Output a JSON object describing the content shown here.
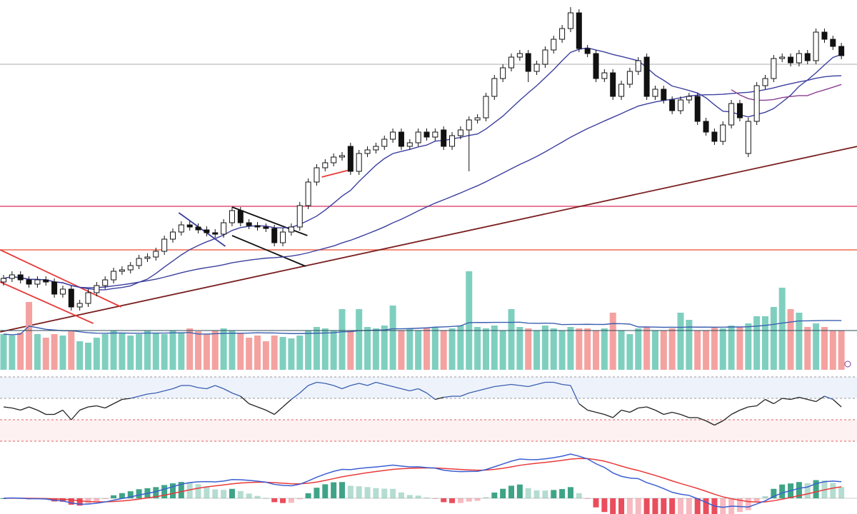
{
  "chart_data": [
    {
      "type": "candlestick",
      "panel": "price",
      "title": "",
      "xlabel": "",
      "ylabel": "",
      "grid": false,
      "open_default": "previous close",
      "close": [
        70,
        75,
        68,
        62,
        68,
        65,
        48,
        55,
        30,
        35,
        50,
        60,
        68,
        80,
        82,
        88,
        98,
        100,
        108,
        125,
        135,
        145,
        142,
        138,
        134,
        132,
        148,
        165,
        148,
        144,
        142,
        140,
        120,
        135,
        142,
        172,
        205,
        225,
        232,
        240,
        242,
        220,
        245,
        250,
        255,
        265,
        275,
        255,
        260,
        275,
        268,
        275,
        255,
        270,
        278,
        292,
        295,
        325,
        350,
        365,
        380,
        385,
        360,
        370,
        390,
        405,
        420,
        442,
        392,
        385,
        350,
        358,
        325,
        342,
        360,
        375,
        325,
        335,
        320,
        305,
        320,
        325,
        290,
        275,
        262,
        285,
        315,
        295,
        290,
        340,
        350,
        378,
        380,
        372,
        385,
        375,
        415,
        405,
        395,
        382
      ],
      "open_overrides": [
        {
          "index": 0,
          "open": 65
        },
        {
          "index": 41,
          "open": 255
        },
        {
          "index": 52,
          "open": 278
        },
        {
          "index": 76,
          "open": 380
        },
        {
          "index": 88,
          "open": 245
        }
      ],
      "long_wicks": [
        {
          "index": 55,
          "low": 220
        },
        {
          "index": 67,
          "high": 450
        },
        {
          "index": 62,
          "low": 345
        }
      ],
      "up_color": "#ffffff",
      "down_color": "#111111",
      "moving_averages": [
        {
          "period": 10,
          "color": "#3b3f9e"
        },
        {
          "period": 40,
          "color": "#3b3f9e"
        },
        {
          "period": 20,
          "color": "#8a3f8f",
          "from_index": 86
        }
      ],
      "horizontal_lines": [
        {
          "price": 370,
          "color": "#c8c8c8"
        },
        {
          "price": 171,
          "color": "#e0507a"
        },
        {
          "price": 110,
          "color": "#f06a50"
        }
      ],
      "trend_lines": [
        {
          "from": [
            -0.4,
            -5
          ],
          "to": [
            100.9,
            255
          ],
          "color": "#7a1f1f"
        },
        {
          "from": [
            -0.4,
            110
          ],
          "to": [
            13.9,
            30
          ],
          "color": "#e83a3a"
        },
        {
          "from": [
            -0.4,
            65
          ],
          "to": [
            10.6,
            7
          ],
          "color": "#e83a3a"
        },
        {
          "from": [
            20.7,
            162
          ],
          "to": [
            26.2,
            115
          ],
          "color": "#3b3f9e"
        },
        {
          "from": [
            27,
            170
          ],
          "to": [
            35.9,
            130
          ],
          "color": "#111111"
        },
        {
          "from": [
            27,
            130
          ],
          "to": [
            35.7,
            87
          ],
          "color": "#111111"
        },
        {
          "from": [
            37.6,
            212
          ],
          "to": [
            40.9,
            222
          ],
          "color": "#e83a3a"
        }
      ]
    },
    {
      "type": "bar",
      "panel": "volume",
      "values": [
        50,
        48,
        52,
        95,
        50,
        45,
        50,
        48,
        55,
        40,
        38,
        45,
        50,
        55,
        52,
        48,
        50,
        55,
        52,
        50,
        55,
        52,
        58,
        54,
        50,
        55,
        58,
        55,
        52,
        45,
        48,
        40,
        48,
        46,
        44,
        48,
        55,
        60,
        58,
        55,
        85,
        55,
        85,
        60,
        58,
        62,
        90,
        55,
        58,
        55,
        58,
        60,
        55,
        58,
        62,
        138,
        60,
        58,
        62,
        55,
        85,
        60,
        58,
        55,
        62,
        58,
        55,
        60,
        58,
        58,
        55,
        58,
        80,
        55,
        50,
        58,
        60,
        55,
        55,
        58,
        80,
        70,
        55,
        55,
        60,
        58,
        62,
        60,
        65,
        75,
        75,
        88,
        115,
        85,
        80,
        60,
        65,
        60,
        55,
        55
      ],
      "up_color": "#7fcfbf",
      "down_color": "#f4a2a0",
      "ma_color": "#3b5fb0"
    },
    {
      "type": "line",
      "panel": "rsi",
      "values": [
        52,
        51,
        49,
        52,
        49,
        45,
        45,
        49,
        40,
        49,
        52,
        53,
        51,
        55,
        59,
        60,
        62,
        64,
        65,
        67,
        69,
        72,
        72,
        70,
        69,
        72,
        69,
        65,
        62,
        55,
        52,
        49,
        45,
        52,
        59,
        65,
        72,
        75,
        74,
        72,
        69,
        72,
        74,
        72,
        75,
        73,
        71,
        69,
        67,
        69,
        65,
        59,
        61,
        62,
        62,
        65,
        67,
        69,
        71,
        72,
        73,
        72,
        71,
        73,
        75,
        75,
        73,
        72,
        55,
        49,
        47,
        45,
        42,
        49,
        47,
        51,
        52,
        49,
        45,
        47,
        45,
        42,
        42,
        39,
        35,
        39,
        45,
        49,
        52,
        53,
        59,
        55,
        60,
        59,
        61,
        59,
        57,
        62,
        59,
        52
      ],
      "levels": [
        80,
        60,
        40,
        20
      ],
      "ylim": [
        20,
        80
      ],
      "color_above": "#3b5fb0",
      "color_below": "#222222"
    },
    {
      "type": "line",
      "panel": "macd",
      "series": [
        {
          "role": "macd",
          "color": "#3b5fd0"
        },
        {
          "role": "signal",
          "color": "#e83a3a"
        }
      ],
      "histogram_up_color": "#2a9a7a",
      "histogram_down_color": "#e83a4a"
    }
  ]
}
